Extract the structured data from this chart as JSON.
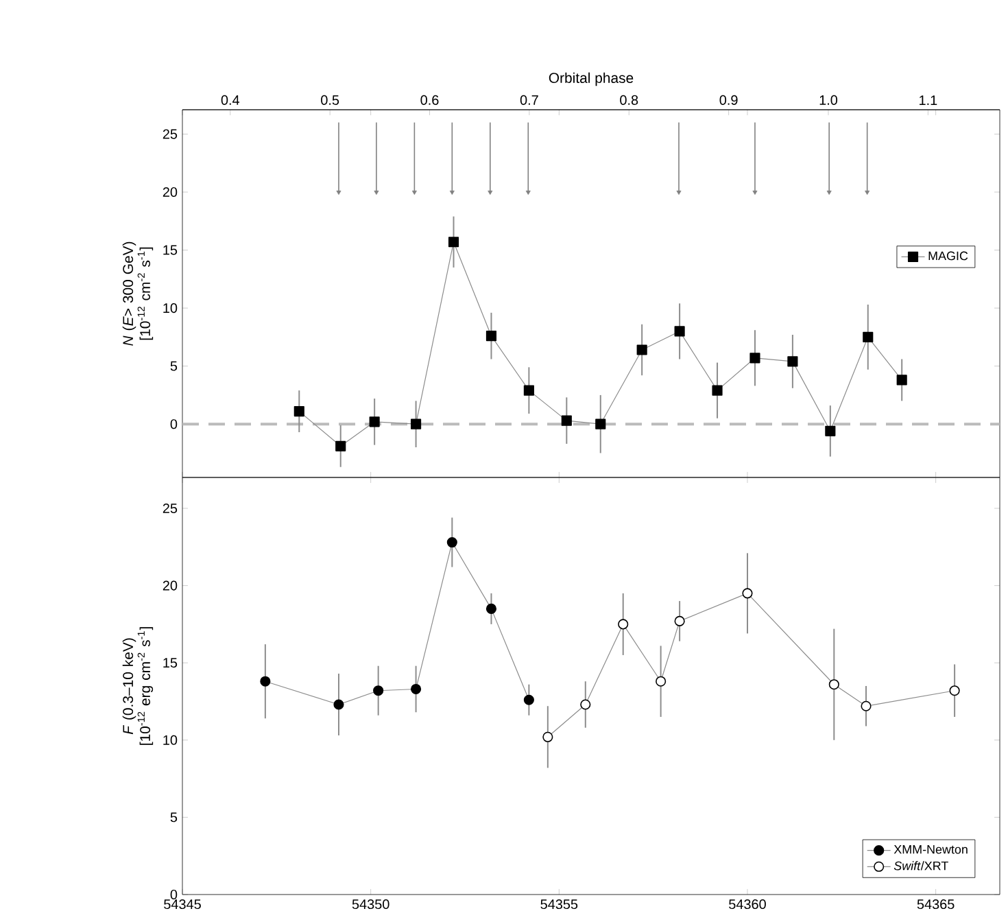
{
  "chart_data": [
    {
      "type": "line",
      "x2label": "Orbital phase",
      "ylabel": "*N* (*E*> 300 GeV) [10$^{-12}$ cm$^{-2}$ s$^{-1}$]",
      "xlim": [
        54345,
        54366.7
      ],
      "xticks": [
        54345,
        54350,
        54355,
        54360,
        54365
      ],
      "tick_labels": "y",
      "x2lim": [
        0.352,
        1.172
      ],
      "x2ticks": [
        {
          "value": 0.4,
          "label": "0.4"
        },
        {
          "value": 0.5,
          "label": "0.5"
        },
        {
          "value": 0.6,
          "label": "0.6"
        },
        {
          "value": 0.7,
          "label": "0.7"
        },
        {
          "value": 0.8,
          "label": "0.8"
        },
        {
          "value": 0.9,
          "label": "0.9"
        },
        {
          "value": 1.0,
          "label": "1.0"
        },
        {
          "value": 1.1,
          "label": "1.1"
        }
      ],
      "ylim": [
        -4.6,
        27.1
      ],
      "yticks": [
        0,
        5,
        10,
        15,
        20,
        25
      ],
      "legend": "right",
      "line_style": "solid",
      "ref_lines": [
        {
          "axis": "y",
          "value": 0,
          "color": "#bbbbbb",
          "line_style": "dashed"
        }
      ],
      "series": [
        {
          "name": "MAGIC",
          "marker": "square",
          "color": "#000000",
          "x": [
            54348.1,
            54349.2,
            54350.1,
            54351.2,
            54352.2,
            54353.2,
            54354.2,
            54355.2,
            54356.1,
            54357.2,
            54358.2,
            54359.2,
            54360.2,
            54361.2,
            54362.2,
            54363.2,
            54364.1
          ],
          "values": [
            1.1,
            -1.9,
            0.2,
            0,
            15.7,
            7.6,
            2.9,
            0.3,
            0,
            6.4,
            8.0,
            2.9,
            5.7,
            5.4,
            -0.6,
            7.5,
            3.8
          ],
          "errors": [
            1.8,
            1.8,
            2,
            2,
            2.2,
            2,
            2,
            2,
            2.5,
            2.2,
            2.4,
            2.4,
            2.4,
            2.3,
            2.2,
            2.8,
            1.8
          ]
        },
        {
          "type": "scatter",
          "marker": "triangle",
          "color": "#808080",
          "x": [
            54349.15,
            54350.15,
            54351.16,
            54352.16,
            54353.17,
            54354.18,
            54358.18,
            54360.2,
            54362.17,
            54363.18
          ],
          "values": [
            20,
            20,
            20,
            20,
            20,
            20,
            20,
            20,
            20,
            20
          ],
          "errors": [
            [
              20,
              26
            ],
            [
              20,
              26
            ],
            [
              20,
              26
            ],
            [
              20,
              26
            ],
            [
              20,
              26
            ],
            [
              20,
              26
            ],
            [
              20,
              26
            ],
            [
              20,
              26
            ],
            [
              20,
              26
            ],
            [
              20,
              26
            ]
          ]
        }
      ]
    },
    {
      "type": "line",
      "ylabel": "*F* (0.3–10 keV) [10$^{-12}$ erg cm$^{-2}$ s$^{-1}$]",
      "xlim": [
        54345,
        54366.7
      ],
      "xticks": [
        54345,
        54350,
        54355,
        54360,
        54365
      ],
      "ylim": [
        0,
        27
      ],
      "yticks": [
        0,
        5,
        10,
        15,
        20,
        25
      ],
      "legend": "bottom right",
      "line_style": "solid",
      "series": [
        {
          "name": "XMM-Newton",
          "marker": "circle",
          "color": "#000000",
          "x": [
            54347.2,
            54349.15,
            54350.2,
            54351.2,
            54352.16,
            54353.2,
            54354.2
          ],
          "values": [
            13.8,
            12.3,
            13.2,
            13.3,
            22.8,
            18.5,
            12.6
          ],
          "errors": [
            2.4,
            2,
            1.6,
            1.5,
            1.6,
            1,
            1
          ]
        },
        {
          "name": "*Swift*/XRT",
          "marker": "circle",
          "color": "#ffffff",
          "x": [
            54354.7,
            54355.7,
            54356.7,
            54357.7,
            54358.2,
            54360.0,
            54362.3,
            54363.15,
            54365.5
          ],
          "values": [
            10.2,
            12.3,
            17.5,
            13.8,
            17.7,
            19.5,
            13.6,
            12.2,
            13.2
          ],
          "errors": [
            2,
            1.5,
            2,
            2.3,
            1.3,
            2.6,
            3.6,
            1.3,
            1.7
          ]
        }
      ]
    }
  ]
}
